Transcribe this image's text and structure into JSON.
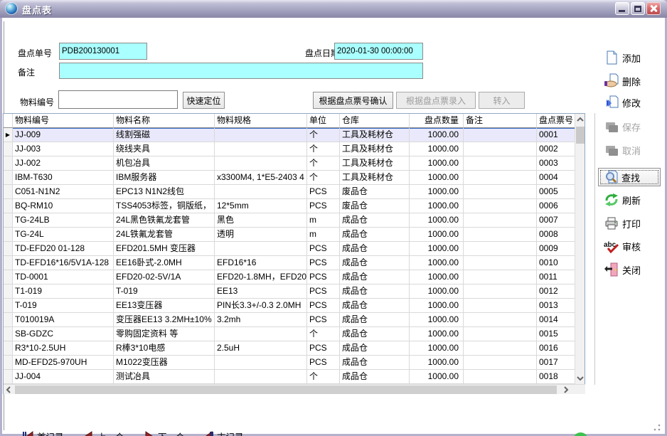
{
  "window": {
    "title": "盘点表"
  },
  "form": {
    "doc_no_label": "盘点单号",
    "doc_no_value": "PDB200130001",
    "date_label": "盘点日期",
    "date_value": "2020-01-30 00:00:00",
    "remark_label": "备注",
    "remark_value": "",
    "material_label": "物料编号",
    "material_value": "",
    "quick_locate_label": "快速定位",
    "confirm_by_ticket_label": "根据盘点票号确认",
    "entry_by_ticket_label": "根据盘点票录入",
    "transfer_label": "转入"
  },
  "table": {
    "columns": [
      "物料编号",
      "物料名称",
      "物料规格",
      "单位",
      "仓库",
      "盘点数量",
      "备注",
      "盘点票号"
    ],
    "selected_row_index": 0,
    "rows": [
      [
        "JJ-009",
        "线割强磁",
        "",
        "个",
        "工具及耗材仓",
        "1000.00",
        "",
        "0001"
      ],
      [
        "JJ-003",
        "绕线夹具",
        "",
        "个",
        "工具及耗材仓",
        "1000.00",
        "",
        "0002"
      ],
      [
        "JJ-002",
        "机包冶具",
        "",
        "个",
        "工具及耗材仓",
        "1000.00",
        "",
        "0003"
      ],
      [
        "IBM-T630",
        "IBM服务器",
        "x3300M4, 1*E5-2403 4",
        "个",
        "工具及耗材仓",
        "1000.00",
        "",
        "0004"
      ],
      [
        "C051-N1N2",
        "EPC13  N1N2线包",
        "",
        "PCS",
        "废品仓",
        "1000.00",
        "",
        "0005"
      ],
      [
        "BQ-RM10",
        "TSS4053标签，铜版纸，",
        "12*5mm",
        "PCS",
        "废品仓",
        "1000.00",
        "",
        "0006"
      ],
      [
        "TG-24LB",
        "24L黑色铁氟龙套管",
        "黑色",
        "m",
        "成品仓",
        "1000.00",
        "",
        "0007"
      ],
      [
        "TG-24L",
        "24L铁氟龙套管",
        "透明",
        "m",
        "成品仓",
        "1000.00",
        "",
        "0008"
      ],
      [
        "TD-EFD20  01-128",
        "EFD201.5MH 变压器",
        "",
        "PCS",
        "成品仓",
        "1000.00",
        "",
        "0009"
      ],
      [
        "TD-EFD16*16/5V1A-128",
        "EE16卧式-2.0MH",
        "EFD16*16",
        "PCS",
        "成品仓",
        "1000.00",
        "",
        "0010"
      ],
      [
        "TD-0001",
        "EFD20-02-5V/1A",
        "EFD20-1.8MH，EFD20",
        "PCS",
        "成品仓",
        "1000.00",
        "",
        "0011"
      ],
      [
        "T1-019",
        "T-019",
        "EE13",
        "PCS",
        "成品仓",
        "1000.00",
        "",
        "0012"
      ],
      [
        "T-019",
        "EE13变压器",
        "PIN长3.3+/-0.3  2.0MH",
        "PCS",
        "成品仓",
        "1000.00",
        "",
        "0013"
      ],
      [
        "T010019A",
        "变压器EE13  3.2MH±10%",
        "3.2mh",
        "PCS",
        "成品仓",
        "1000.00",
        "",
        "0014"
      ],
      [
        "SB-GDZC",
        "零购固定资料 等",
        "",
        "个",
        "成品仓",
        "1000.00",
        "",
        "0015"
      ],
      [
        "R3*10-2.5UH",
        "R棒3*10电感",
        "2.5uH",
        "PCS",
        "成品仓",
        "1000.00",
        "",
        "0016"
      ],
      [
        "MD-EFD25-970UH",
        "M1022变压器",
        "",
        "PCS",
        "成品仓",
        "1000.00",
        "",
        "0017"
      ],
      [
        "JJ-004",
        "测试冶具",
        "",
        "个",
        "成品仓",
        "1000.00",
        "",
        "0018"
      ]
    ]
  },
  "sidebar": {
    "items": [
      {
        "label": "添加",
        "icon": "add-page-icon",
        "enabled": true
      },
      {
        "label": "删除",
        "icon": "delete-hand-icon",
        "enabled": true
      },
      {
        "label": "修改",
        "icon": "edit-arrows-icon",
        "enabled": true
      },
      {
        "label": "保存",
        "icon": "save-folder-icon",
        "enabled": false
      },
      {
        "label": "取消",
        "icon": "cancel-folder-icon",
        "enabled": false
      },
      {
        "label": "查找",
        "icon": "search-icon",
        "enabled": true,
        "focused": true
      },
      {
        "label": "刷新",
        "icon": "refresh-icon",
        "enabled": true
      },
      {
        "label": "打印",
        "icon": "printer-icon",
        "enabled": true
      },
      {
        "label": "审核",
        "icon": "audit-abc-icon",
        "enabled": true
      },
      {
        "label": "关闭",
        "icon": "close-door-icon",
        "enabled": true
      }
    ]
  },
  "nav": {
    "items": [
      {
        "label": "首记录",
        "icon": "first-record-icon"
      },
      {
        "label": "上一个",
        "icon": "previous-record-icon"
      },
      {
        "label": "下一个",
        "icon": "next-record-icon"
      },
      {
        "label": "末记录",
        "icon": "last-record-icon"
      }
    ]
  },
  "colors": {
    "field_cyan": "#aaffff",
    "selected_row": "#e9e9fb",
    "selected_row_border": "#3b6fc9",
    "titlebar_base": "#9c9bb9",
    "close_button": "#bc4a4d",
    "disabled_text": "#a3a3a3",
    "nav_triangle_red": "#8c2424",
    "nav_bar_navy": "#1f2e7a",
    "green_badge": "#3cc24e"
  }
}
